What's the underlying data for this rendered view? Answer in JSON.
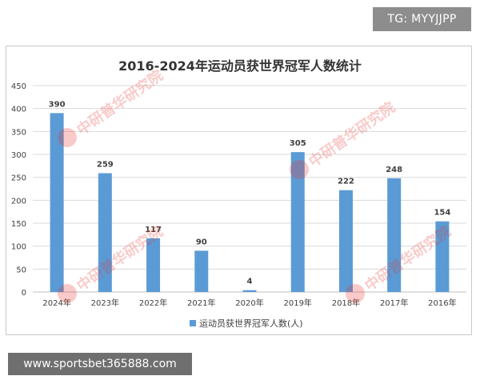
{
  "badge": {
    "text": "TG: MYYJJPP"
  },
  "footer": {
    "url": "www.sportsbet365888.com"
  },
  "watermark": {
    "text": "中研普华研究院"
  },
  "colors": {
    "bar": "#5b9bd5",
    "grid": "#d9d9d9",
    "axis": "#bfbfbf",
    "title": "#333333",
    "label": "#404040"
  },
  "chart_data": {
    "type": "bar",
    "title": "2016-2024年运动员获世界冠军人数统计",
    "xlabel": "",
    "ylabel": "",
    "categories": [
      "2024年",
      "2023年",
      "2022年",
      "2021年",
      "2020年",
      "2019年",
      "2018年",
      "2017年",
      "2016年"
    ],
    "series": [
      {
        "name": "运动员获世界冠军人数(人)",
        "values": [
          390,
          259,
          117,
          90,
          4,
          305,
          222,
          248,
          154
        ]
      }
    ],
    "ylim": [
      0,
      450
    ],
    "yticks": [
      0,
      50,
      100,
      150,
      200,
      250,
      300,
      350,
      400,
      450
    ],
    "grid": true,
    "legend": "bottom",
    "data_labels": true
  }
}
